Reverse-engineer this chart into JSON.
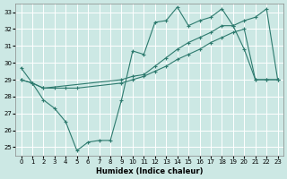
{
  "xlabel": "Humidex (Indice chaleur)",
  "background_color": "#cce8e4",
  "grid_color": "#ffffff",
  "line_color": "#2d7a6e",
  "xlim": [
    -0.5,
    23.5
  ],
  "ylim": [
    24.5,
    33.5
  ],
  "yticks": [
    25,
    26,
    27,
    28,
    29,
    30,
    31,
    32,
    33
  ],
  "xticks": [
    0,
    1,
    2,
    3,
    4,
    5,
    6,
    7,
    8,
    9,
    10,
    11,
    12,
    13,
    14,
    15,
    16,
    17,
    18,
    19,
    20,
    21,
    22,
    23
  ],
  "line1_x": [
    0,
    1,
    2,
    3,
    4,
    5,
    6,
    7,
    8,
    9,
    10,
    11,
    12,
    13,
    14,
    15,
    16,
    17,
    18,
    19,
    20,
    21,
    22,
    23
  ],
  "line1_y": [
    29.7,
    28.8,
    27.8,
    27.3,
    26.5,
    24.8,
    25.3,
    25.4,
    25.4,
    27.8,
    30.7,
    30.5,
    32.4,
    32.5,
    33.3,
    32.2,
    32.5,
    32.7,
    33.2,
    32.2,
    30.8,
    29.0,
    29.0,
    29.0
  ],
  "line2_x": [
    0,
    1,
    2,
    9,
    10,
    11,
    12,
    13,
    14,
    15,
    16,
    17,
    18,
    19,
    20,
    21,
    22,
    23
  ],
  "line2_y": [
    29.0,
    28.8,
    28.5,
    29.0,
    29.2,
    29.3,
    29.8,
    30.3,
    30.8,
    31.2,
    31.5,
    31.8,
    32.2,
    32.2,
    32.5,
    32.7,
    33.2,
    29.0
  ],
  "line3_x": [
    0,
    1,
    2,
    3,
    4,
    5,
    9,
    10,
    11,
    12,
    13,
    14,
    15,
    16,
    17,
    18,
    19,
    20,
    21,
    22,
    23
  ],
  "line3_y": [
    29.0,
    28.8,
    28.5,
    28.5,
    28.5,
    28.5,
    28.8,
    29.0,
    29.2,
    29.5,
    29.8,
    30.2,
    30.5,
    30.8,
    31.2,
    31.5,
    31.8,
    32.0,
    29.0,
    29.0,
    29.0
  ]
}
